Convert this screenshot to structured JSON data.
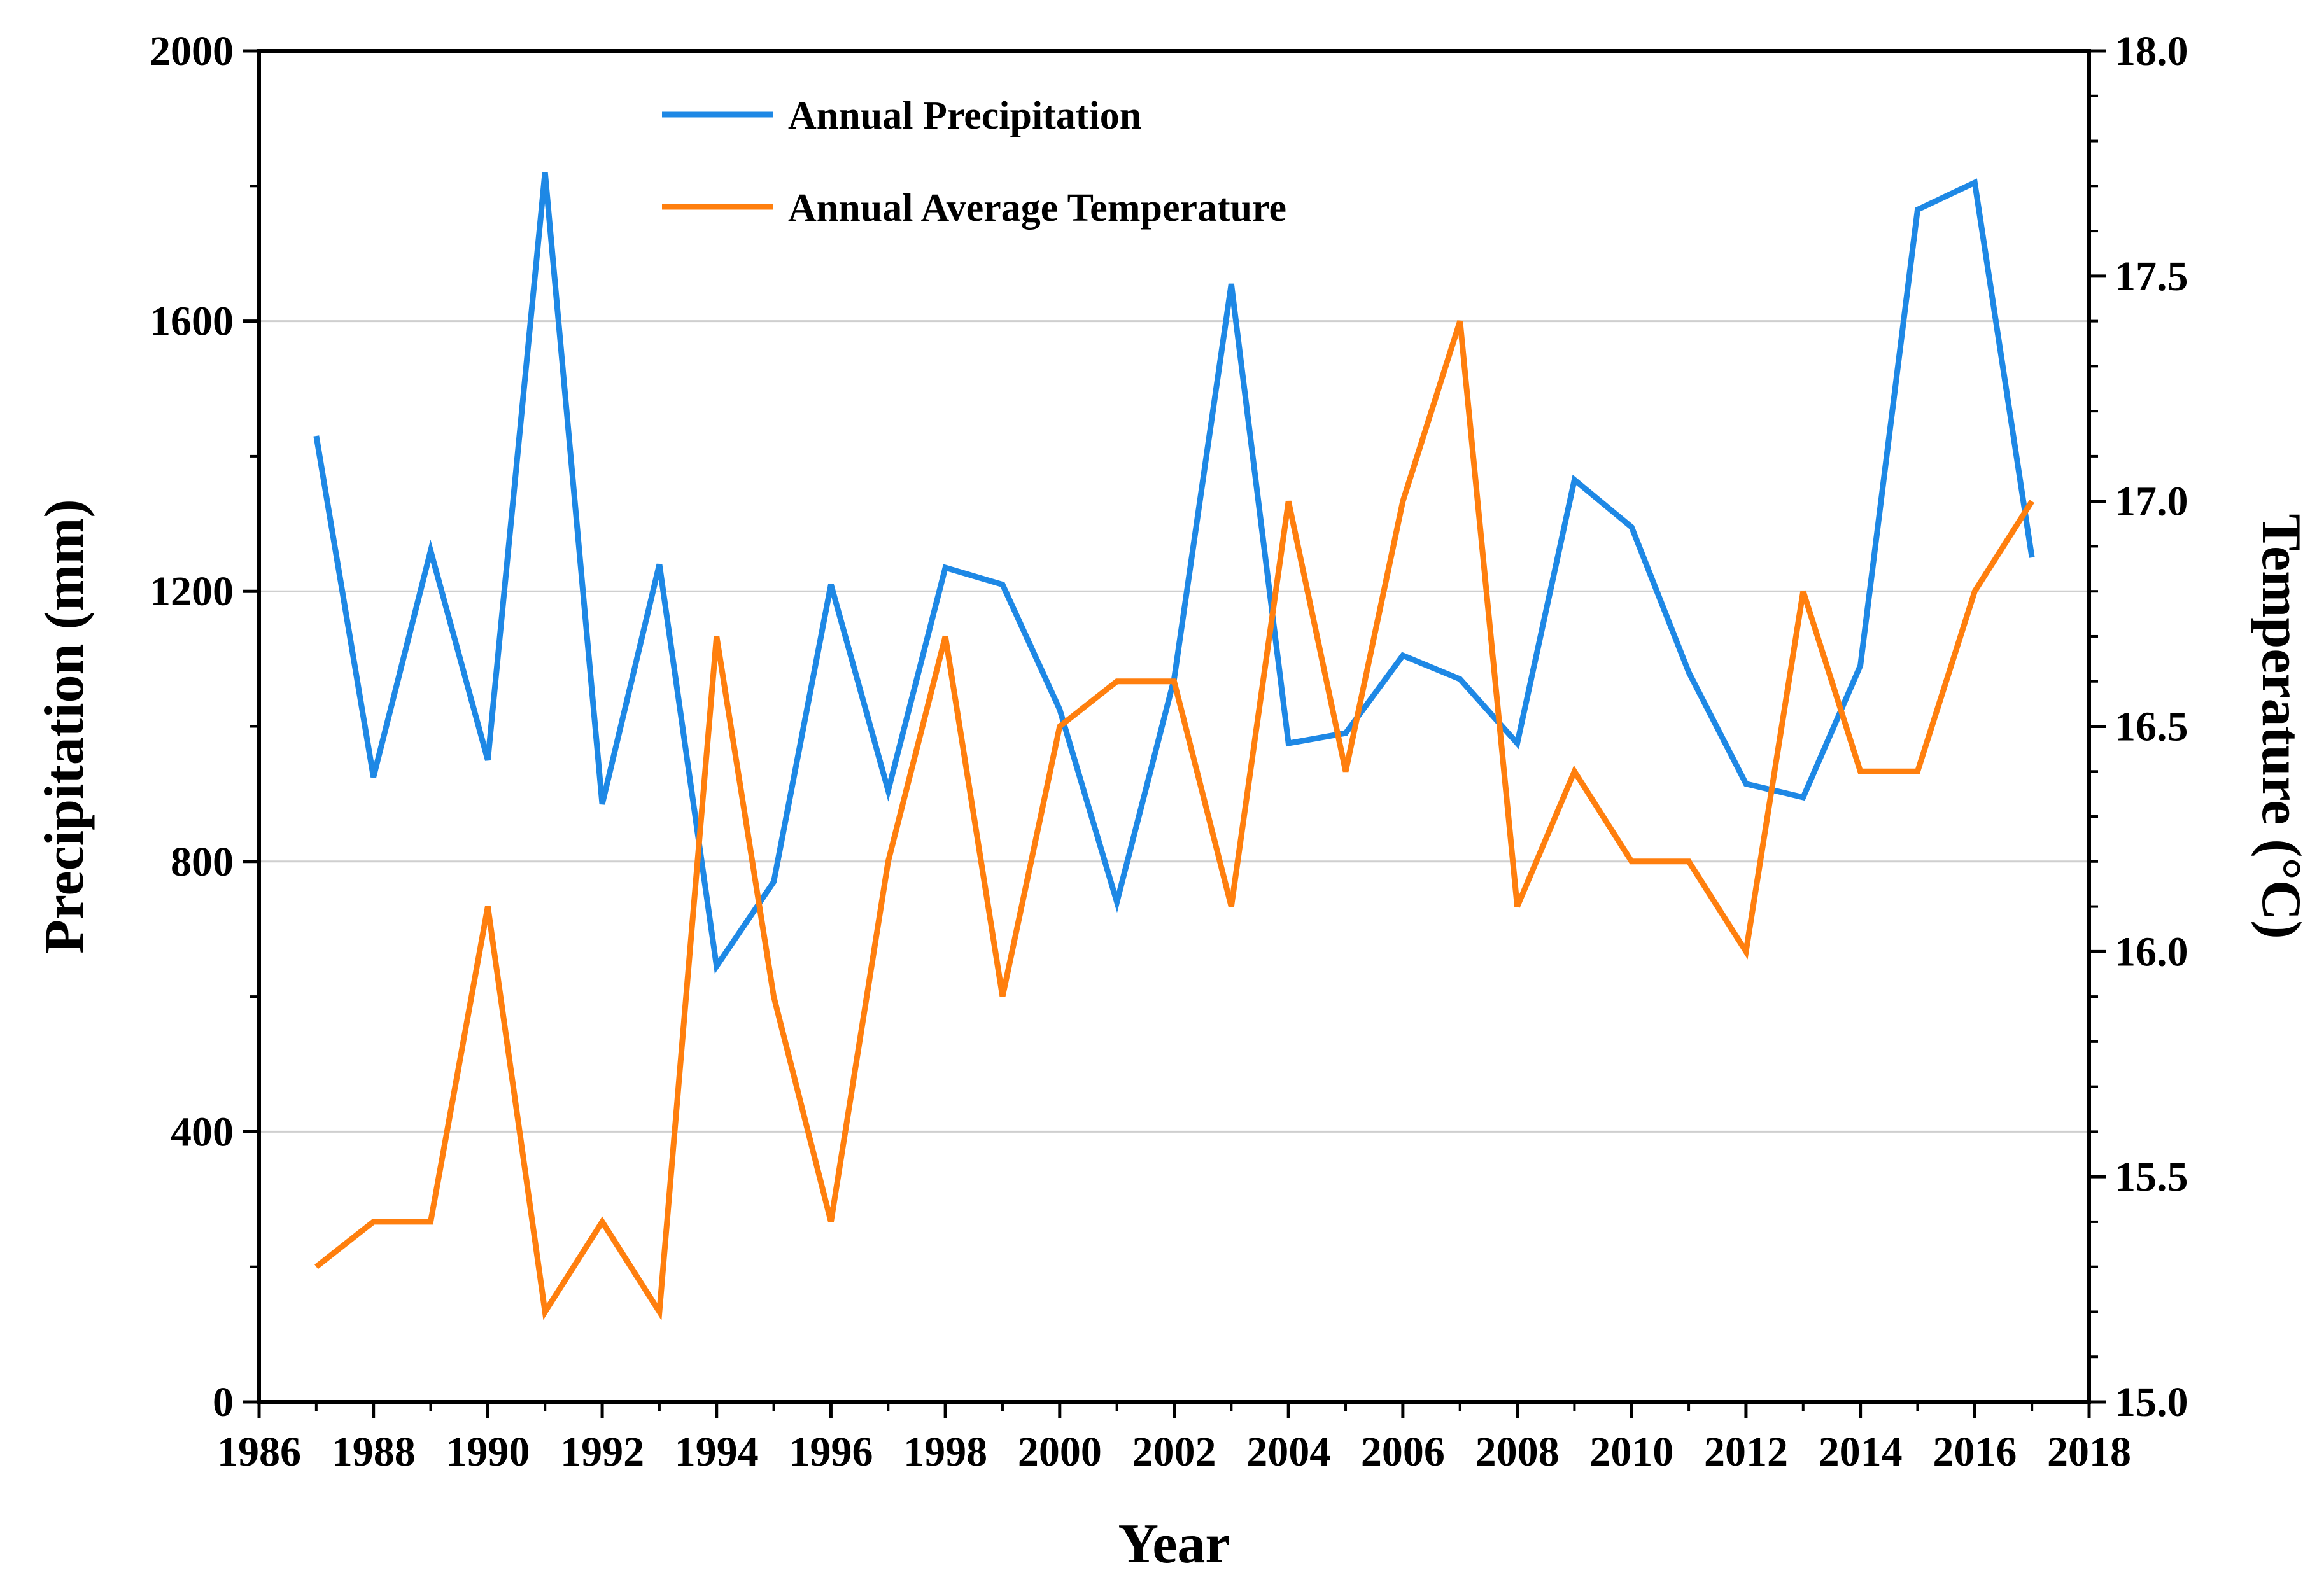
{
  "chart_data": {
    "type": "line",
    "title": "",
    "xlabel": "Year",
    "ylabel": "Precipitation (mm)",
    "y2label": "Temperature (°C)",
    "xlim": [
      1986,
      2018
    ],
    "ylim": [
      0,
      2000
    ],
    "y2lim": [
      15.0,
      18.0
    ],
    "xticks": [
      "1986",
      "1988",
      "1990",
      "1992",
      "1994",
      "1996",
      "1998",
      "2000",
      "2002",
      "2004",
      "2006",
      "2008",
      "2010",
      "2012",
      "2014",
      "2016",
      "2018"
    ],
    "yticks": [
      "0",
      "400",
      "800",
      "1200",
      "1600",
      "2000"
    ],
    "y2ticks": [
      "15.0",
      "15.5",
      "16.0",
      "16.5",
      "17.0",
      "17.5",
      "18.0"
    ],
    "grid": "horizontal",
    "legend_position": "top-center",
    "x": [
      1987,
      1988,
      1989,
      1990,
      1991,
      1992,
      1993,
      1994,
      1995,
      1996,
      1997,
      1998,
      1999,
      2000,
      2001,
      2002,
      2003,
      2004,
      2005,
      2006,
      2007,
      2008,
      2009,
      2010,
      2011,
      2012,
      2013,
      2014,
      2015,
      2016,
      2017
    ],
    "series": [
      {
        "name": "Annual Precipitation",
        "axis": "left",
        "color": "#1e88e5",
        "values": [
          1430,
          925,
          1260,
          950,
          1820,
          885,
          1240,
          645,
          770,
          1210,
          905,
          1235,
          1210,
          1025,
          740,
          1070,
          1655,
          975,
          990,
          1105,
          1070,
          975,
          1365,
          1295,
          1080,
          915,
          895,
          1090,
          1765,
          1805,
          1250
        ]
      },
      {
        "name": "Annual Average Temperature",
        "axis": "right",
        "color": "#ff7f0e",
        "values": [
          15.3,
          15.4,
          15.4,
          16.1,
          15.2,
          15.4,
          15.2,
          16.7,
          15.9,
          15.4,
          16.2,
          16.7,
          15.9,
          16.5,
          16.6,
          16.6,
          16.1,
          17.0,
          16.4,
          17.0,
          17.4,
          16.1,
          16.4,
          16.2,
          16.2,
          16.0,
          16.8,
          16.4,
          16.4,
          16.8,
          17.0
        ]
      }
    ]
  }
}
